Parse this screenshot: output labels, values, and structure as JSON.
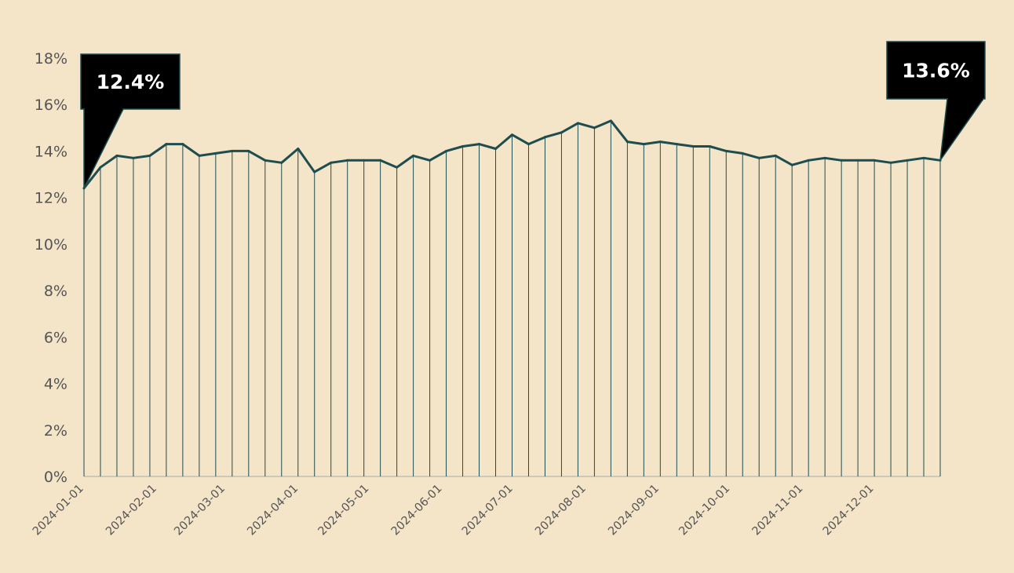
{
  "chart_data": {
    "type": "area",
    "title": "",
    "xlabel": "",
    "ylabel": "",
    "x_start": "2024-01-01",
    "x_end": "2024-12-29",
    "x_frequency": "weekly",
    "x_tick_labels": [
      "2024-01-01",
      "2024-02-01",
      "2024-03-01",
      "2024-04-01",
      "2024-05-01",
      "2024-06-01",
      "2024-07-01",
      "2024-08-01",
      "2024-09-01",
      "2024-10-01",
      "2024-11-01",
      "2024-12-01"
    ],
    "ylim": [
      0,
      18
    ],
    "y_tick_labels": [
      "0%",
      "2%",
      "4%",
      "6%",
      "8%",
      "10%",
      "12%",
      "14%",
      "16%",
      "18%"
    ],
    "y_unit": "%",
    "values": [
      12.4,
      13.3,
      13.8,
      13.7,
      13.8,
      14.3,
      14.3,
      13.8,
      13.9,
      14.0,
      14.0,
      13.6,
      13.5,
      14.1,
      13.1,
      13.5,
      13.6,
      13.6,
      13.6,
      13.3,
      13.8,
      13.6,
      14.0,
      14.2,
      14.3,
      14.1,
      14.7,
      14.3,
      14.6,
      14.8,
      15.2,
      15.0,
      15.3,
      14.4,
      14.3,
      14.4,
      14.3,
      14.2,
      14.2,
      14.0,
      13.9,
      13.7,
      13.8,
      13.4,
      13.6,
      13.7,
      13.6,
      13.6,
      13.6,
      13.5,
      13.6,
      13.7,
      13.6
    ],
    "grid": false,
    "legend": "none",
    "annotations": [
      {
        "label": "12.4%",
        "point": "first"
      },
      {
        "label": "13.6%",
        "point": "last"
      }
    ],
    "colors": {
      "background": "#f4e4c8",
      "line": "#1e4d4f",
      "callout_fill": "#000000",
      "callout_border": "#1e4d4f",
      "callout_text": "#ffffff",
      "tick_text": "#555555"
    }
  }
}
